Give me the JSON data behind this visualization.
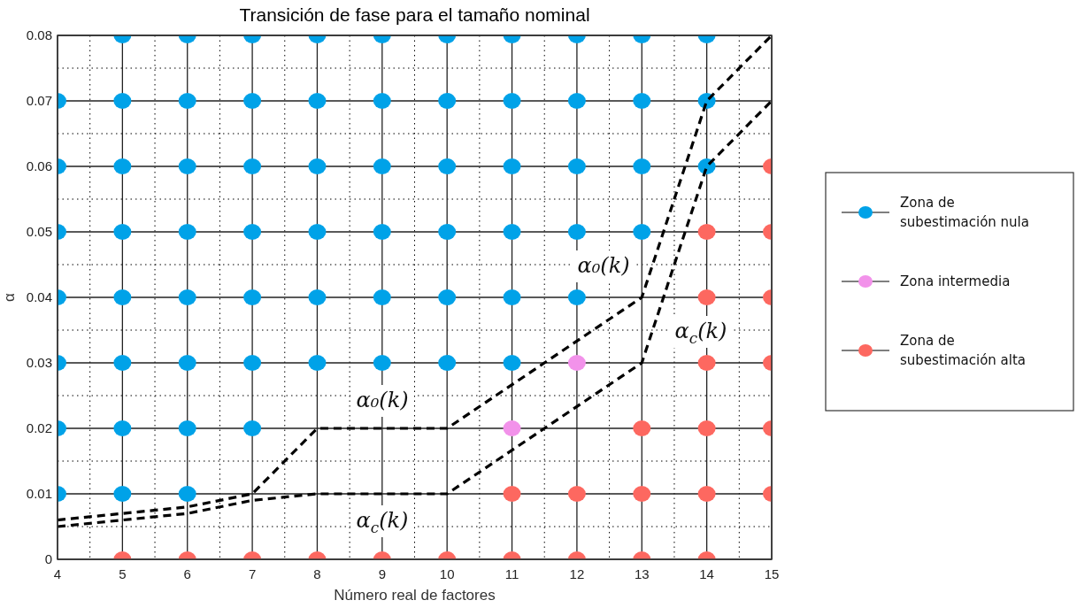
{
  "chart_data": {
    "type": "scatter",
    "title": "Transición de fase para el tamaño nominal",
    "xlabel": "Número real de factores",
    "ylabel": "α",
    "xlim": [
      4,
      15
    ],
    "xticks": [
      4,
      5,
      6,
      7,
      8,
      9,
      10,
      11,
      12,
      13,
      14,
      15
    ],
    "ylim": [
      0,
      0.08
    ],
    "yticks": [
      0,
      0.01,
      0.02,
      0.03,
      0.04,
      0.05,
      0.06,
      0.07,
      0.08
    ],
    "grid": true,
    "legend": "right",
    "marker": "circle",
    "series": [
      {
        "name": "Zona de subestimación nula",
        "color": "#00a2e8",
        "x": [
          5,
          6,
          7,
          8,
          9,
          10,
          11,
          12,
          13,
          14,
          4,
          5,
          6,
          7,
          8,
          9,
          10,
          11,
          12,
          13,
          14,
          4,
          5,
          6,
          7,
          8,
          9,
          10,
          11,
          12,
          13,
          14,
          4,
          5,
          6,
          7,
          8,
          9,
          10,
          11,
          12,
          13,
          4,
          5,
          6,
          7,
          8,
          9,
          10,
          11,
          12,
          4,
          5,
          6,
          7,
          8,
          9,
          10,
          11,
          4,
          5,
          6,
          7,
          4,
          5,
          6
        ],
        "values": [
          0.08,
          0.08,
          0.08,
          0.08,
          0.08,
          0.08,
          0.08,
          0.08,
          0.08,
          0.08,
          0.07,
          0.07,
          0.07,
          0.07,
          0.07,
          0.07,
          0.07,
          0.07,
          0.07,
          0.07,
          0.07,
          0.06,
          0.06,
          0.06,
          0.06,
          0.06,
          0.06,
          0.06,
          0.06,
          0.06,
          0.06,
          0.06,
          0.05,
          0.05,
          0.05,
          0.05,
          0.05,
          0.05,
          0.05,
          0.05,
          0.05,
          0.05,
          0.04,
          0.04,
          0.04,
          0.04,
          0.04,
          0.04,
          0.04,
          0.04,
          0.04,
          0.03,
          0.03,
          0.03,
          0.03,
          0.03,
          0.03,
          0.03,
          0.03,
          0.02,
          0.02,
          0.02,
          0.02,
          0.01,
          0.01,
          0.01
        ]
      },
      {
        "name": "Zona intermedia",
        "color": "#f292ea",
        "x": [
          11,
          12
        ],
        "values": [
          0.02,
          0.03
        ]
      },
      {
        "name": "Zona de subestimación alta",
        "color": "#fd6860",
        "x": [
          5,
          6,
          7,
          8,
          9,
          10,
          11,
          12,
          13,
          14,
          11,
          12,
          13,
          14,
          15,
          13,
          14,
          15,
          14,
          15,
          14,
          15,
          14,
          15,
          15
        ],
        "values": [
          0,
          0,
          0,
          0,
          0,
          0,
          0,
          0,
          0,
          0,
          0.01,
          0.01,
          0.01,
          0.01,
          0.01,
          0.02,
          0.02,
          0.02,
          0.03,
          0.03,
          0.04,
          0.04,
          0.05,
          0.05,
          0.06
        ]
      },
      {
        "type": "line",
        "color": "#000000",
        "line_style": "dashed",
        "marker": "none",
        "x": [
          4,
          5,
          6,
          7,
          8,
          10,
          13,
          14,
          15
        ],
        "values": [
          0.006,
          0.007,
          0.008,
          0.01,
          0.02,
          0.02,
          0.04,
          0.07,
          0.08
        ]
      },
      {
        "type": "line",
        "color": "#000000",
        "line_style": "dashed",
        "marker": "none",
        "x": [
          4,
          5,
          6,
          7,
          8,
          10,
          13,
          14,
          15
        ],
        "values": [
          0.005,
          0.006,
          0.007,
          0.009,
          0.01,
          0.01,
          0.03,
          0.06,
          0.07
        ]
      }
    ],
    "annotations": [
      "α₀(k)",
      "α$_{c}$(k)",
      "α₀(k)",
      "α$_{c}$(k)"
    ]
  }
}
